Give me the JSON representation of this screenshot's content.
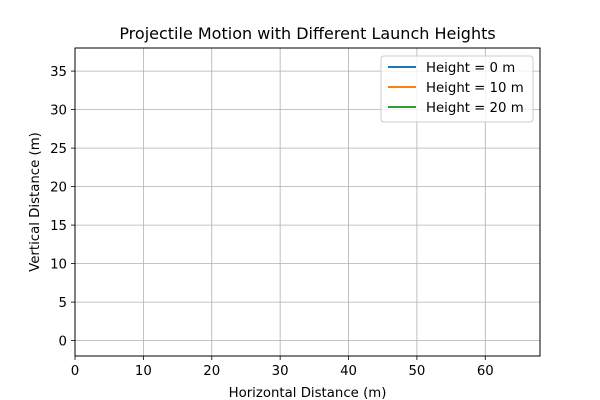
{
  "chart_data": {
    "type": "line",
    "title": "Projectile Motion with Different Launch Heights",
    "xlabel": "Horizontal Distance (m)",
    "ylabel": "Vertical Distance (m)",
    "xlim": [
      0,
      68
    ],
    "ylim": [
      -2,
      38
    ],
    "xticks": [
      0,
      10,
      20,
      30,
      40,
      50,
      60
    ],
    "yticks": [
      0,
      5,
      10,
      15,
      20,
      25,
      30,
      35
    ],
    "grid": true,
    "legend_position": "top-right",
    "series": [
      {
        "name": "Height = 0 m",
        "color": "#1f77b4",
        "x": [],
        "y": []
      },
      {
        "name": "Height = 10 m",
        "color": "#ff7f0e",
        "x": [],
        "y": []
      },
      {
        "name": "Height = 20 m",
        "color": "#2ca02c",
        "x": [],
        "y": []
      }
    ]
  }
}
